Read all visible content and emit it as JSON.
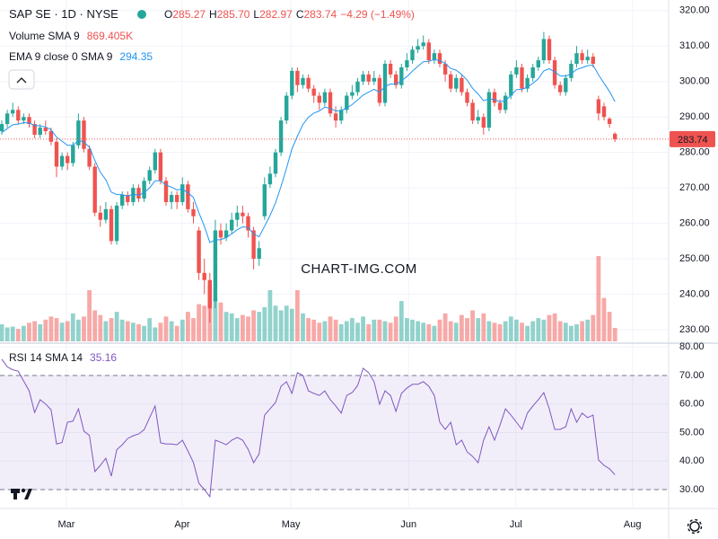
{
  "chart_data": {
    "type": "candlestick",
    "title": "SAP SE · 1D · NYSE",
    "ohlc_labels": [
      "O",
      "H",
      "L",
      "C"
    ],
    "ohlc_value_labels": [
      "285.27",
      "285.70",
      "282.97",
      "283.74"
    ],
    "change": "−4.29 (−1.49%)",
    "up_color": "#26a69a",
    "down_color": "#ef5350",
    "open": [
      286,
      288,
      291,
      292,
      289,
      290,
      288,
      285,
      287,
      286,
      283,
      276,
      279,
      277,
      282,
      289,
      281,
      276,
      263,
      261,
      264,
      255,
      265,
      268,
      266,
      270,
      267,
      272,
      275,
      280,
      272,
      266,
      268,
      266,
      271,
      264,
      258,
      246,
      244,
      238,
      258,
      256,
      258,
      261,
      263,
      262,
      258,
      250,
      262,
      271,
      274,
      280,
      289,
      296,
      303,
      299,
      301,
      298,
      296,
      294,
      297,
      291,
      289,
      292,
      296,
      297,
      300,
      302,
      300,
      301,
      294,
      305,
      302,
      299,
      304,
      306,
      309,
      310,
      311,
      306,
      308,
      305,
      302,
      298,
      301,
      297,
      294,
      289,
      290,
      287,
      297,
      294,
      292,
      296,
      302,
      304,
      298,
      301,
      304,
      306,
      312,
      306,
      299,
      297,
      301,
      305,
      308,
      306,
      307,
      295,
      293,
      289.5,
      285.27
    ],
    "high": [
      289,
      292,
      294,
      293,
      291,
      291,
      289,
      288,
      289,
      287,
      284,
      280,
      280,
      283,
      291,
      290,
      282,
      277,
      265,
      266,
      265,
      266,
      269,
      269,
      271,
      271,
      273,
      276,
      281,
      281,
      273,
      269,
      269,
      273,
      272,
      266,
      259,
      250,
      246,
      261,
      260,
      260,
      263,
      265,
      265,
      263,
      259,
      255,
      273,
      276,
      281,
      290,
      297,
      304,
      304,
      302,
      302,
      299,
      297,
      298,
      298,
      293,
      293,
      297,
      299,
      301,
      303,
      303,
      303,
      302,
      306,
      306,
      303,
      305,
      308,
      310,
      312,
      313,
      312,
      309,
      309,
      306,
      303,
      302,
      302,
      298,
      295,
      292,
      291,
      298,
      298,
      295,
      297,
      303,
      306,
      305,
      302,
      305,
      307,
      314,
      313,
      307,
      300,
      302,
      306,
      310,
      309,
      309,
      308,
      296,
      294,
      290,
      285.7
    ],
    "low": [
      285,
      287,
      290,
      288,
      288,
      287,
      284,
      284,
      285,
      282,
      273,
      275,
      275,
      276,
      281,
      280,
      275,
      262,
      259,
      260,
      254,
      254,
      264,
      265,
      265,
      266,
      266,
      271,
      274,
      271,
      265,
      264,
      264,
      265,
      263,
      260,
      244,
      240,
      232,
      236,
      254,
      255,
      257,
      259,
      260,
      256,
      247,
      248,
      261,
      270,
      273,
      279,
      288,
      295,
      297,
      298,
      297,
      294,
      292,
      293,
      290,
      287,
      288,
      291,
      295,
      296,
      299,
      299,
      299,
      293,
      293,
      301,
      298,
      298,
      303,
      305,
      308,
      309,
      305,
      305,
      304,
      300,
      297,
      297,
      296,
      293,
      288,
      288,
      285,
      286,
      293,
      291,
      291,
      295,
      301,
      297,
      297,
      300,
      303,
      305,
      305,
      298,
      296,
      296,
      300,
      304,
      305,
      305,
      304,
      289,
      289,
      287,
      282.97
    ],
    "close": [
      288,
      291,
      292,
      289,
      290,
      288,
      285,
      287,
      286,
      283,
      276,
      279,
      277,
      282,
      289,
      281,
      276,
      263,
      261,
      264,
      255,
      265,
      268,
      266,
      270,
      267,
      272,
      275,
      280,
      272,
      266,
      268,
      266,
      271,
      264,
      262,
      246,
      244,
      236,
      258,
      256,
      258,
      261,
      263,
      262,
      258,
      250,
      253,
      271,
      274,
      280,
      289,
      296,
      303,
      299,
      301,
      298,
      296,
      294,
      297,
      291,
      289,
      292,
      296,
      297,
      300,
      302,
      300,
      301,
      294,
      305,
      302,
      299,
      304,
      306,
      309,
      310,
      311,
      306,
      308,
      305,
      302,
      298,
      301,
      297,
      294,
      289,
      290,
      287,
      297,
      294,
      292,
      296,
      302,
      304,
      298,
      301,
      304,
      306,
      312,
      306,
      299,
      297,
      301,
      305,
      308,
      306,
      307,
      305,
      291,
      290,
      288.03,
      283.74
    ],
    "ylim": [
      226.7,
      323
    ],
    "yticks": [
      {
        "value": 230,
        "label": "230.00"
      },
      {
        "value": 240,
        "label": "240.00"
      },
      {
        "value": 250,
        "label": "250.00"
      },
      {
        "value": 260,
        "label": "260.00"
      },
      {
        "value": 270,
        "label": "270.00"
      },
      {
        "value": 280,
        "label": "280.00"
      },
      {
        "value": 290,
        "label": "290.00"
      },
      {
        "value": 300,
        "label": "300.00"
      },
      {
        "value": 310,
        "label": "310.00"
      },
      {
        "value": 320,
        "label": "320.00"
      }
    ],
    "xticks": [
      {
        "value": 11.8,
        "label": "Mar"
      },
      {
        "value": 32.95,
        "label": "Apr"
      },
      {
        "value": 52.8,
        "label": "May"
      },
      {
        "value": 74.3,
        "label": "Jun"
      },
      {
        "value": 93.9,
        "label": "Jul"
      },
      {
        "value": 115.2,
        "label": "Aug"
      }
    ],
    "grid": true,
    "volume": {
      "name": "Volume SMA 9",
      "value_label": "869.405K",
      "values": [
        1100000,
        900000,
        950000,
        800000,
        1000000,
        1200000,
        1300000,
        1100000,
        1400000,
        1600000,
        1500000,
        1200000,
        1300000,
        1800000,
        1400000,
        1600000,
        3300000,
        2000000,
        1700000,
        1300000,
        1500000,
        1900000,
        1400000,
        1300000,
        1200000,
        1100000,
        1000000,
        1500000,
        900000,
        1200000,
        1600000,
        1300000,
        1000000,
        1400000,
        1900000,
        1500000,
        2400000,
        2300000,
        3600000,
        2800000,
        2500000,
        1900000,
        1800000,
        1500000,
        1700000,
        1600000,
        2000000,
        1900000,
        2200000,
        3300000,
        2300000,
        2000000,
        2300000,
        2100000,
        3300000,
        1800000,
        1500000,
        1400000,
        1200000,
        1300000,
        1600000,
        1400000,
        1100000,
        1300000,
        1500000,
        1200000,
        1600000,
        1100000,
        1400000,
        1400000,
        1300000,
        1200000,
        1600000,
        2600000,
        1500000,
        1400000,
        1300000,
        1200000,
        1100000,
        1000000,
        1400000,
        1800000,
        1300000,
        1200000,
        1700000,
        1500000,
        2000000,
        1500000,
        1800000,
        1300000,
        1200000,
        1100000,
        1300000,
        1600000,
        1400000,
        1200000,
        1000000,
        1300000,
        1500000,
        1400000,
        1700000,
        1800000,
        1300000,
        1200000,
        1000000,
        1100000,
        1300000,
        1400000,
        1700000,
        5500000,
        2800000,
        1900000,
        869405
      ]
    },
    "ema": {
      "name": "EMA 9 close 0 SMA 9",
      "color": "#2196f3",
      "values": [
        285.6,
        286.7,
        287.8,
        288.0,
        288.4,
        288.3,
        287.6,
        287.5,
        287.2,
        286.4,
        284.3,
        283.2,
        282.0,
        282.0,
        283.4,
        282.9,
        281.5,
        277.8,
        274.4,
        272.3,
        268.8,
        268.1,
        268.1,
        267.7,
        268.2,
        267.9,
        268.7,
        270.0,
        272.0,
        272.0,
        270.8,
        270.2,
        269.4,
        269.7,
        268.6,
        267.3,
        263.0,
        259.2,
        254.6,
        255.3,
        255.4,
        256.0,
        257.0,
        258.2,
        259.0,
        258.8,
        257.0,
        256.2,
        259.2,
        262.2,
        265.8,
        270.4,
        275.5,
        281.0,
        284.6,
        287.9,
        289.9,
        291.1,
        291.7,
        292.8,
        292.4,
        291.7,
        291.8,
        292.6,
        293.5,
        294.8,
        296.2,
        297.0,
        297.8,
        297.0,
        298.6,
        299.3,
        299.2,
        300.2,
        301.4,
        302.9,
        304.3,
        305.6,
        305.7,
        306.2,
        305.9,
        305.1,
        303.7,
        303.2,
        302.0,
        300.4,
        298.1,
        296.5,
        294.6,
        295.1,
        294.9,
        294.3,
        294.6,
        296.1,
        297.7,
        297.8,
        298.4,
        299.5,
        300.8,
        303.0,
        303.6,
        302.7,
        301.6,
        301.5,
        302.2,
        303.4,
        303.9,
        304.5,
        304.6,
        301.9,
        299.5,
        297.2,
        294.35
      ]
    },
    "rsi": {
      "name": "RSI 14 SMA 14",
      "color": "#7e57c2",
      "values": [
        75.7,
        73,
        72,
        71.5,
        68,
        64.6,
        57,
        61.5,
        60,
        58,
        46,
        46.5,
        53.6,
        54,
        58.3,
        50.5,
        49,
        36.3,
        38.5,
        41,
        34.7,
        44,
        45.7,
        47.9,
        48.9,
        49.5,
        51,
        55.2,
        59.3,
        46.4,
        46,
        46,
        45.7,
        47.3,
        43.5,
        39.5,
        32.2,
        30,
        27.5,
        47.3,
        46.6,
        45.7,
        47.3,
        48.3,
        47.3,
        44.1,
        39.4,
        42.5,
        56.1,
        58.3,
        60.5,
        66.2,
        67.8,
        63.7,
        71,
        70,
        64.6,
        63.7,
        63,
        64.6,
        61.5,
        59.3,
        56.8,
        63,
        64,
        66.5,
        72.5,
        71,
        67.8,
        59.9,
        64.6,
        63,
        57.4,
        63.7,
        65.6,
        66.9,
        66.9,
        67.8,
        66.2,
        63,
        53.6,
        51.1,
        53.6,
        45.7,
        47.3,
        43.2,
        41.6,
        39.4,
        47.3,
        52,
        47.3,
        52.6,
        58.3,
        56.1,
        53.6,
        51.1,
        56.8,
        59.3,
        61.5,
        64,
        58.3,
        51.1,
        51.1,
        52,
        58.3,
        53.6,
        56.8,
        55.2,
        56.1,
        40.4,
        38.5,
        37.3,
        35.16
      ],
      "ylim": [
        23.7,
        81
      ],
      "yticks": [
        {
          "value": 30,
          "label": "30.00"
        },
        {
          "value": 40,
          "label": "40.00"
        },
        {
          "value": 50,
          "label": "50.00"
        },
        {
          "value": 60,
          "label": "60.00"
        },
        {
          "value": 70,
          "label": "70.00"
        },
        {
          "value": 80,
          "label": "80.00"
        }
      ],
      "band": [
        30,
        70
      ]
    },
    "watermark": "CHART-IMG.COM"
  }
}
